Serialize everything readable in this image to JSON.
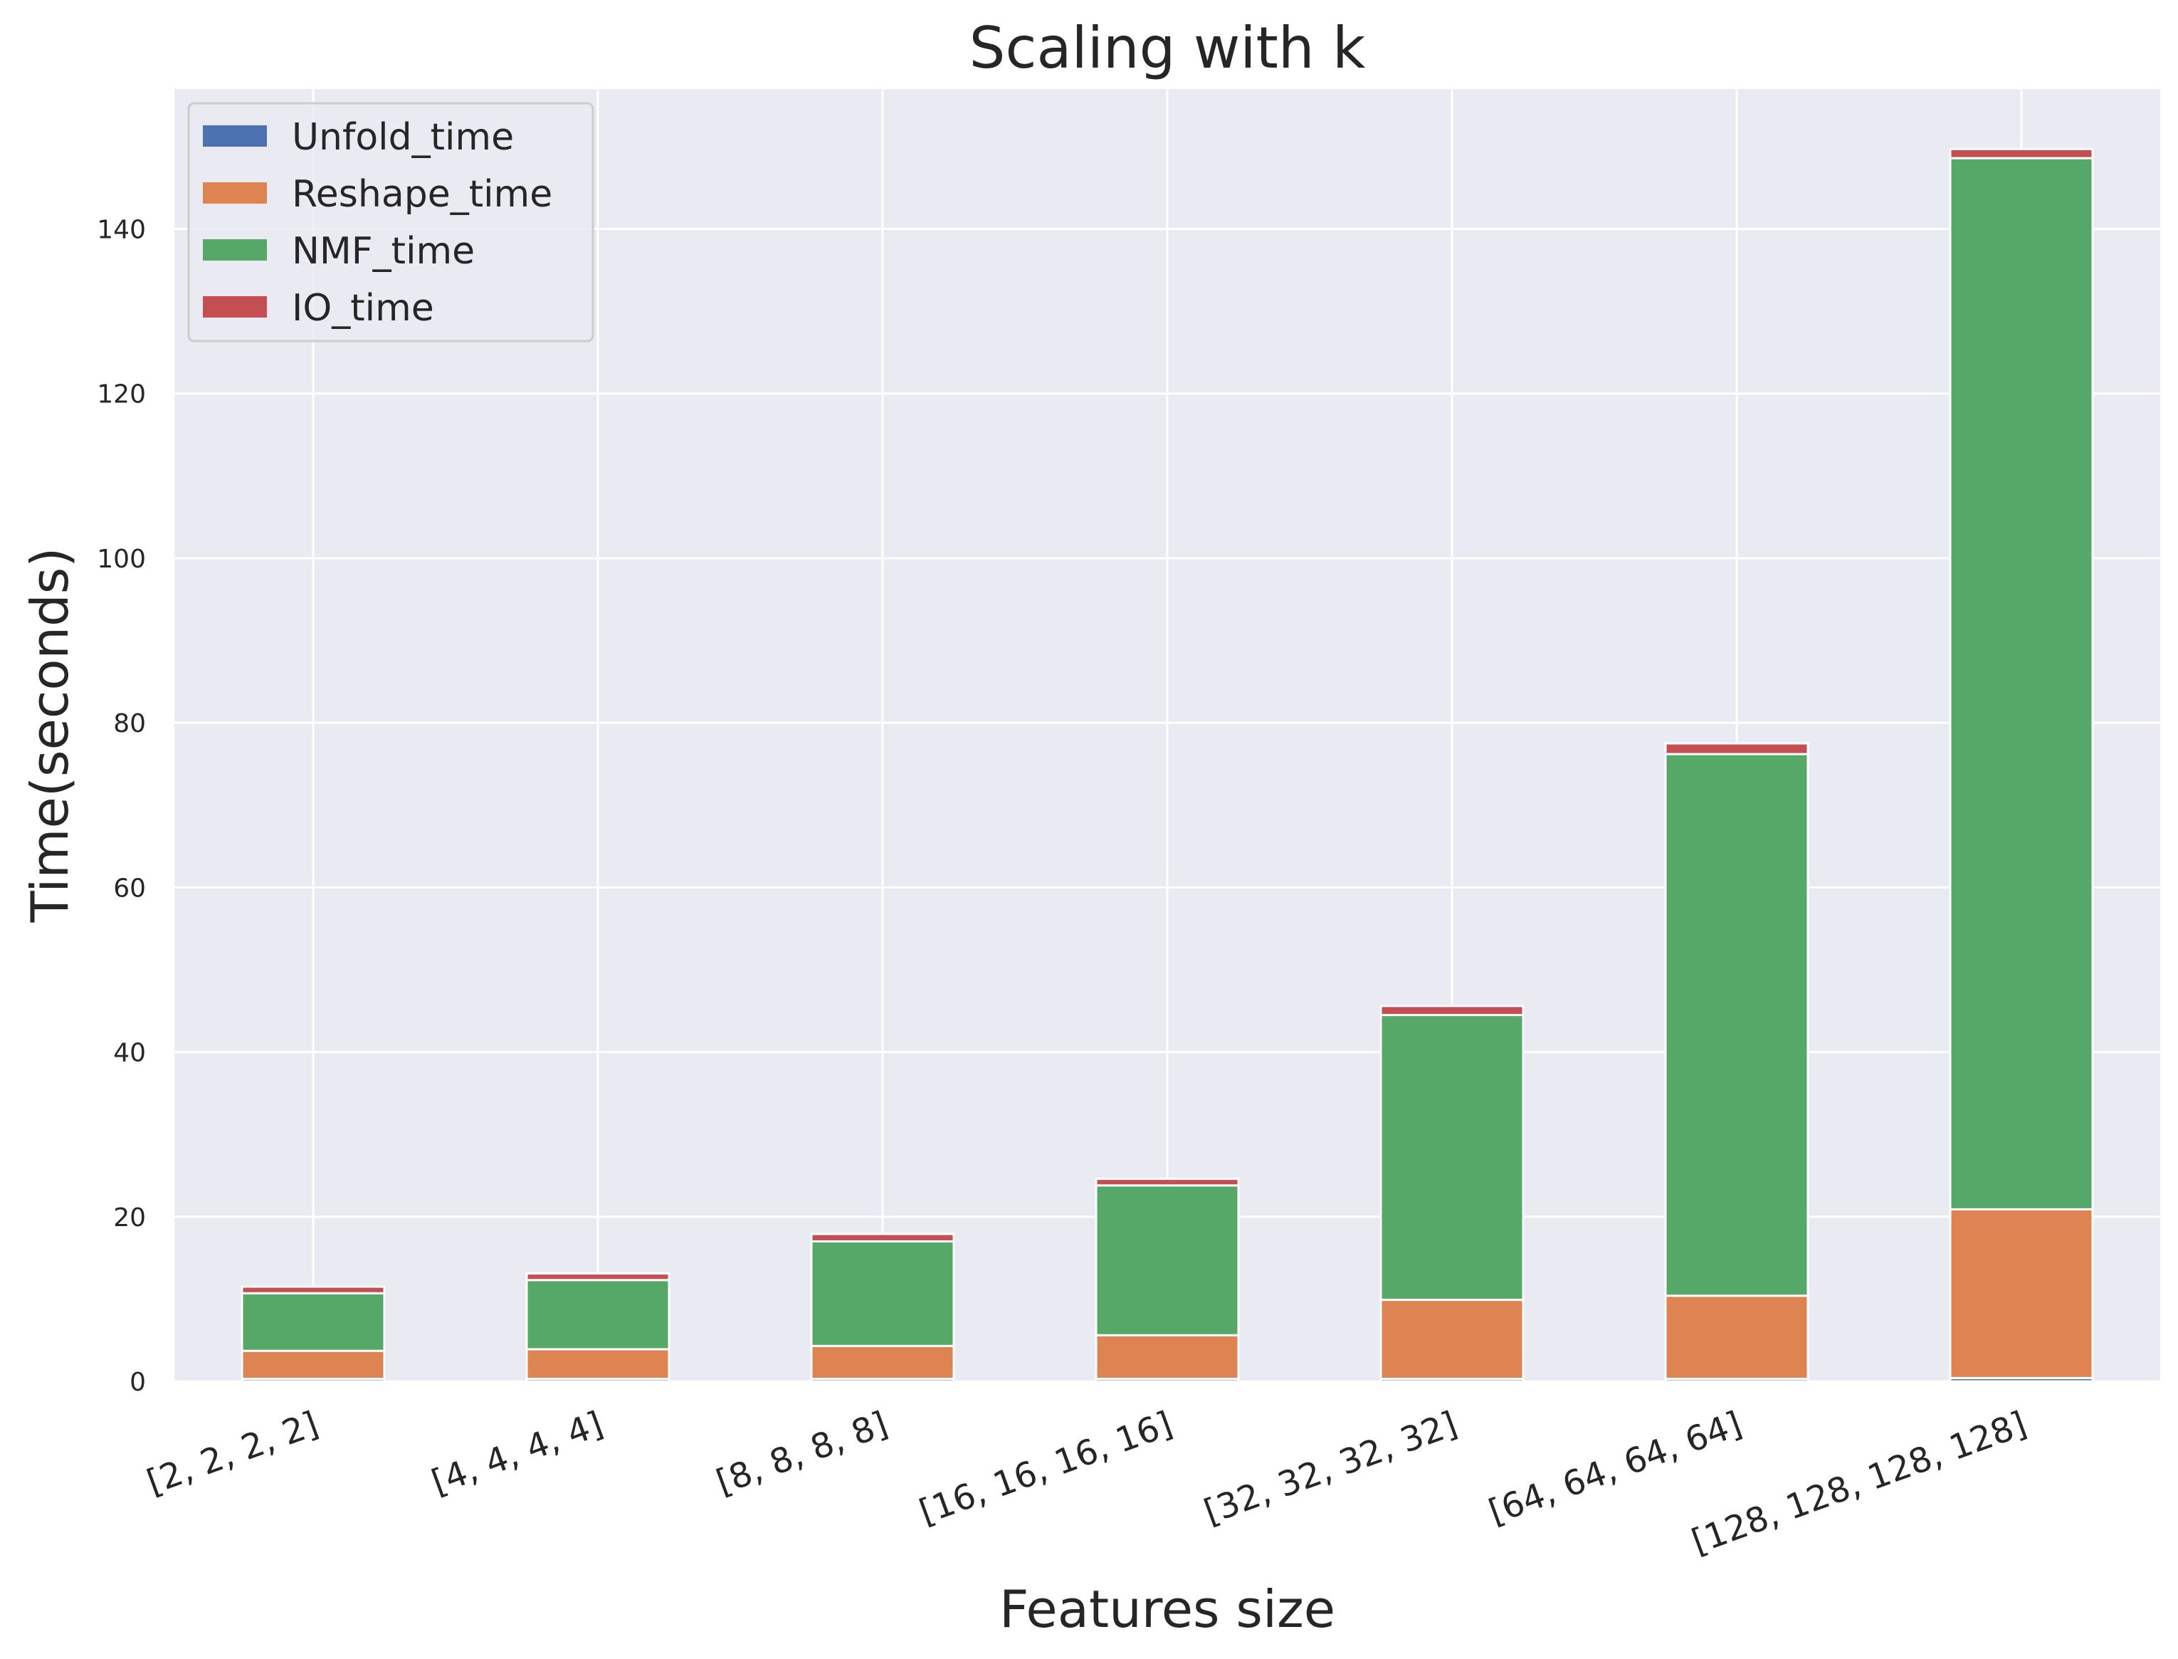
{
  "chart_data": {
    "type": "bar",
    "stacked": true,
    "title": "Scaling with k",
    "xlabel": "Features size",
    "ylabel": "Time(seconds)",
    "ylim": [
      0,
      157
    ],
    "yticks": [
      0,
      20,
      40,
      60,
      80,
      100,
      120,
      140
    ],
    "grid": true,
    "legend_position": "top-left",
    "categories": [
      "[2, 2, 2, 2]",
      "[4, 4, 4, 4]",
      "[8, 8, 8, 8]",
      "[16, 16, 16, 16]",
      "[32, 32, 32, 32]",
      "[64, 64, 64, 64]",
      "[128, 128, 128, 128]"
    ],
    "series": [
      {
        "name": "Unfold_time",
        "color": "#4c72b0",
        "values": [
          0.3,
          0.3,
          0.3,
          0.3,
          0.3,
          0.3,
          0.4
        ]
      },
      {
        "name": "Reshape_time",
        "color": "#dd8452",
        "values": [
          3.4,
          3.6,
          4.0,
          5.3,
          9.6,
          10.1,
          20.5
        ]
      },
      {
        "name": "NMF_time",
        "color": "#55a868",
        "values": [
          7.0,
          8.4,
          12.7,
          18.2,
          34.6,
          65.8,
          127.7
        ]
      },
      {
        "name": "IO_time",
        "color": "#c44e52",
        "values": [
          0.8,
          0.8,
          0.9,
          0.8,
          1.1,
          1.3,
          1.1
        ]
      }
    ]
  }
}
